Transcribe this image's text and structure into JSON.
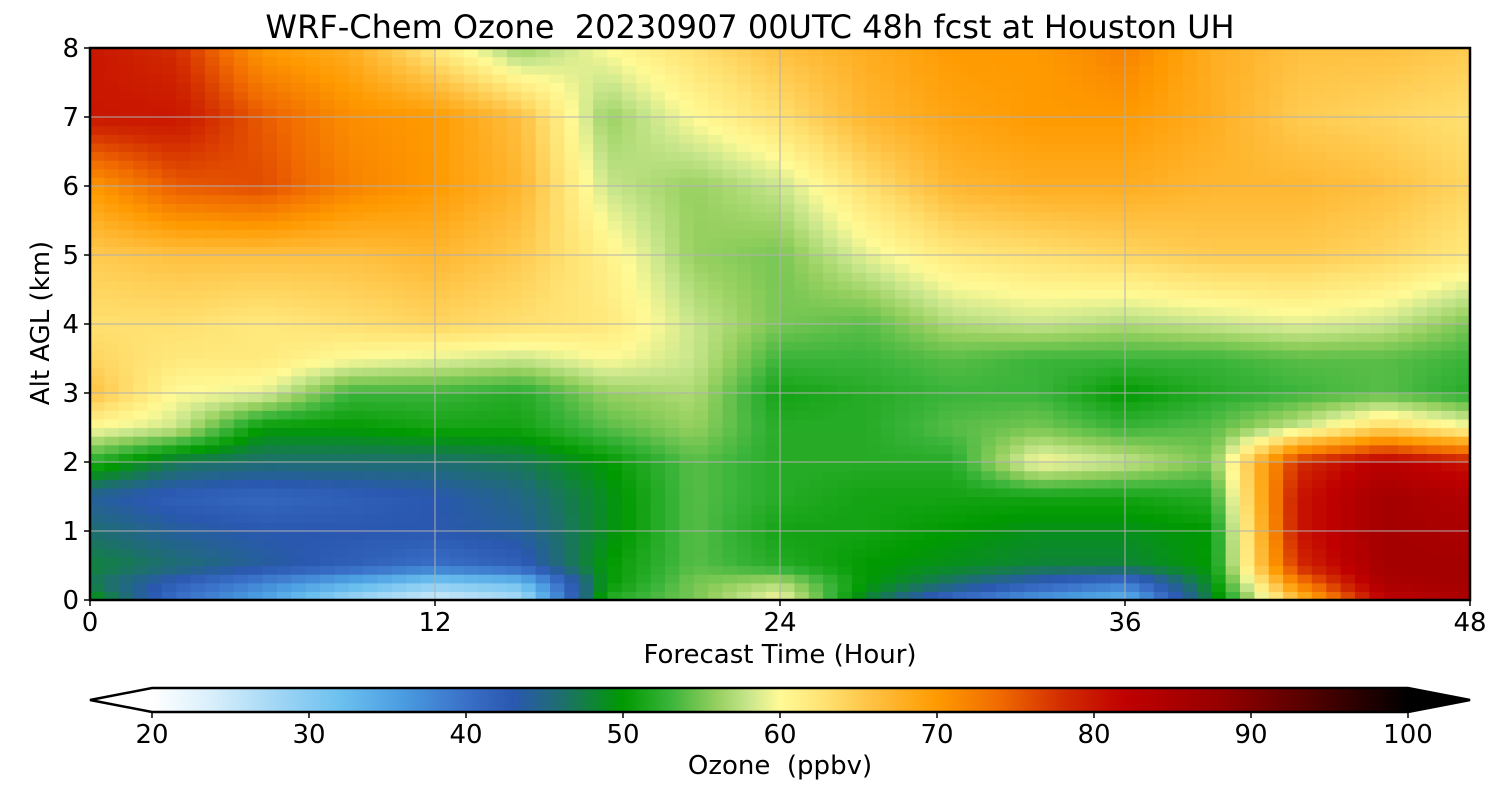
{
  "chart_data": {
    "type": "heatmap",
    "title": "WRF-Chem Ozone  20230907 00UTC 48h fcst at Houston UH",
    "xlabel": "Forecast Time (Hour)",
    "ylabel": "Alt AGL (km)",
    "xlim": [
      0,
      48
    ],
    "ylim": [
      0,
      8
    ],
    "xticks": [
      0,
      12,
      24,
      36,
      48
    ],
    "yticks": [
      0,
      1,
      2,
      3,
      4,
      5,
      6,
      7,
      8
    ],
    "grid": true,
    "x": [
      0,
      3,
      6,
      9,
      12,
      15,
      18,
      21,
      24,
      27,
      30,
      33,
      36,
      39,
      42,
      45,
      48
    ],
    "y": [
      0,
      0.25,
      0.5,
      1,
      1.5,
      2,
      2.5,
      3,
      3.5,
      4,
      5,
      6,
      7,
      8
    ],
    "values": [
      [
        50,
        40,
        35,
        28,
        24,
        27,
        52,
        55,
        60,
        48,
        40,
        36,
        33,
        48,
        66,
        82,
        85
      ],
      [
        47,
        42,
        38,
        34,
        30,
        32,
        50,
        55,
        57,
        50,
        46,
        42,
        39,
        49,
        72,
        85,
        86
      ],
      [
        48,
        46,
        44,
        42,
        40,
        42,
        50,
        54,
        52,
        50,
        49,
        48,
        48,
        50,
        78,
        86,
        86
      ],
      [
        46,
        44,
        43,
        43,
        43,
        44,
        49,
        54,
        51,
        51,
        50,
        49,
        49,
        50,
        80,
        86,
        85
      ],
      [
        44,
        42,
        41,
        42,
        43,
        45,
        49,
        54,
        52,
        51,
        51,
        51,
        51,
        52,
        80,
        86,
        84
      ],
      [
        52,
        47,
        46,
        46,
        46,
        47,
        50,
        54,
        52,
        52,
        52,
        60,
        58,
        55,
        78,
        83,
        80
      ],
      [
        60,
        58,
        50,
        50,
        51,
        51,
        54,
        56,
        52,
        52,
        54,
        55,
        53,
        54,
        58,
        64,
        60
      ],
      [
        66,
        60,
        59,
        53,
        53,
        52,
        56,
        57,
        51,
        52,
        53,
        53,
        50,
        52,
        53,
        54,
        52
      ],
      [
        64,
        62,
        62,
        60,
        59,
        58,
        60,
        58,
        53,
        53,
        54,
        53,
        53,
        53,
        54,
        54,
        53
      ],
      [
        63,
        63,
        62,
        63,
        64,
        63,
        62,
        58,
        55,
        54,
        57,
        58,
        57,
        58,
        59,
        58,
        55
      ],
      [
        65,
        66,
        66,
        66,
        67,
        65,
        61,
        56,
        55,
        59,
        62,
        63,
        64,
        65,
        65,
        64,
        62
      ],
      [
        70,
        75,
        76,
        72,
        70,
        67,
        58,
        56,
        58,
        63,
        67,
        68,
        68,
        67,
        67,
        66,
        64
      ],
      [
        80,
        80,
        75,
        71,
        70,
        66,
        56,
        60,
        63,
        67,
        69,
        70,
        70,
        68,
        65,
        64,
        63
      ],
      [
        80,
        78,
        70,
        68,
        62,
        56,
        60,
        63,
        66,
        68,
        70,
        70,
        72,
        68,
        66,
        66,
        65
      ]
    ],
    "colorbar": {
      "label": "Ozone  (ppbv)",
      "range": [
        20,
        100
      ],
      "ticks": [
        20,
        30,
        40,
        50,
        60,
        70,
        80,
        90,
        100
      ],
      "extend": "both",
      "colors": [
        {
          "value": 20,
          "color": "#ffffff"
        },
        {
          "value": 24,
          "color": "#d6eefb"
        },
        {
          "value": 28,
          "color": "#a0d6f5"
        },
        {
          "value": 32,
          "color": "#6cc0ef"
        },
        {
          "value": 36,
          "color": "#4a9ce0"
        },
        {
          "value": 40,
          "color": "#3a70c8"
        },
        {
          "value": 43,
          "color": "#2a58b0"
        },
        {
          "value": 46,
          "color": "#1e6e70"
        },
        {
          "value": 50,
          "color": "#009a00"
        },
        {
          "value": 53,
          "color": "#3ab43a"
        },
        {
          "value": 56,
          "color": "#96d060"
        },
        {
          "value": 58,
          "color": "#c8e68c"
        },
        {
          "value": 60,
          "color": "#fffa96"
        },
        {
          "value": 63,
          "color": "#ffe070"
        },
        {
          "value": 66,
          "color": "#ffc040"
        },
        {
          "value": 70,
          "color": "#ff9a00"
        },
        {
          "value": 74,
          "color": "#f06a00"
        },
        {
          "value": 78,
          "color": "#d22c00"
        },
        {
          "value": 82,
          "color": "#c00000"
        },
        {
          "value": 88,
          "color": "#960000"
        },
        {
          "value": 94,
          "color": "#500000"
        },
        {
          "value": 100,
          "color": "#000000"
        }
      ]
    }
  }
}
